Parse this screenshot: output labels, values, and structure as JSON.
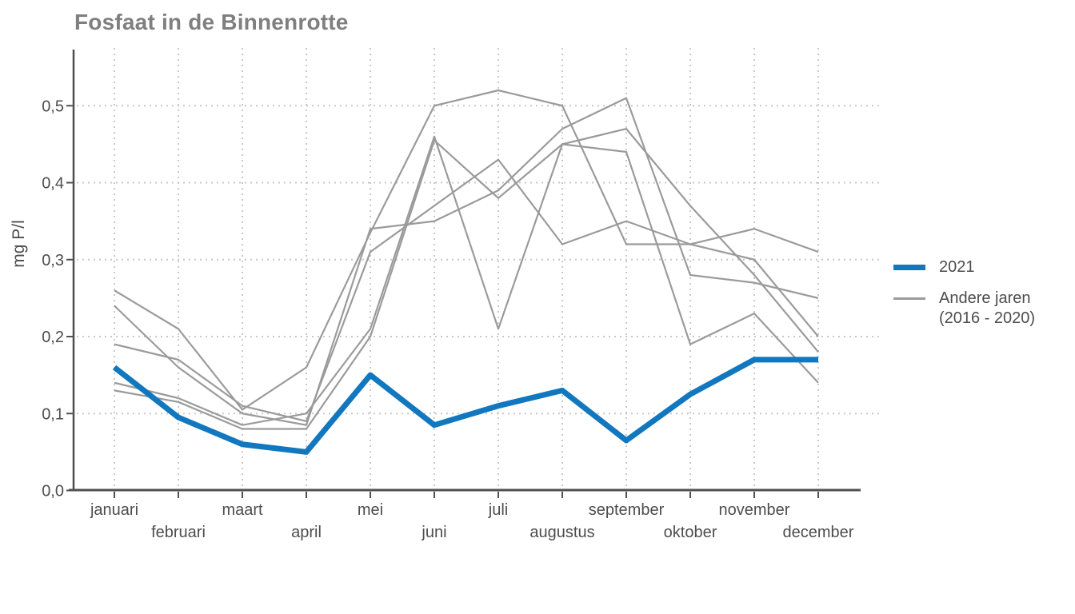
{
  "colors": {
    "accent_blue": "#1177be",
    "gray_line": "#9b9b9b",
    "grid": "#c8c8c8",
    "axis": "#4f4f4f",
    "tick_text": "#4d4d4d",
    "title_text": "#7f7f7f"
  },
  "chart_data": {
    "type": "line",
    "title": "Fosfaat in de Binnenrotte",
    "ylabel": "mg P/l",
    "xlabel": "",
    "x": [
      "januari",
      "februari",
      "maart",
      "april",
      "mei",
      "juni",
      "juli",
      "augustus",
      "september",
      "oktober",
      "november",
      "december"
    ],
    "yticks": [
      0,
      0.1,
      0.2,
      0.3,
      0.4,
      0.5
    ],
    "ytick_labels": [
      "0,0",
      "0,1",
      "0,2",
      "0,3",
      "0,4",
      "0,5"
    ],
    "ylim": [
      0,
      0.57
    ],
    "grid": "dotted",
    "legend_position": "right",
    "legend": [
      {
        "label": "2021",
        "color": "#1177be",
        "line_width": 7
      },
      {
        "label": "Andere jaren",
        "label2": "(2016 - 2020)",
        "color": "#9b9b9b",
        "line_width": 3
      }
    ],
    "series": [
      {
        "name": "2021",
        "color": "#1177be",
        "width": 7,
        "values": [
          0.16,
          0.095,
          0.06,
          0.05,
          0.15,
          0.085,
          0.11,
          0.13,
          0.065,
          0.125,
          0.17,
          0.17
        ]
      },
      {
        "name": "Andere jaren (2016 - 2020)",
        "color": "#9b9b9b",
        "width": 2.2,
        "values": [
          0.26,
          0.21,
          0.105,
          0.16,
          0.335,
          0.5,
          0.52,
          0.5,
          0.32,
          0.32,
          0.34,
          0.31
        ]
      },
      {
        "name": "Andere jaren (2016 - 2020)",
        "color": "#9b9b9b",
        "width": 2.2,
        "values": [
          0.24,
          0.16,
          0.1,
          0.085,
          0.34,
          0.35,
          0.39,
          0.47,
          0.51,
          0.28,
          0.27,
          0.25
        ]
      },
      {
        "name": "Andere jaren (2016 - 2020)",
        "color": "#9b9b9b",
        "width": 2.2,
        "values": [
          0.19,
          0.17,
          0.11,
          0.09,
          0.31,
          0.37,
          0.43,
          0.32,
          0.35,
          0.32,
          0.3,
          0.2
        ]
      },
      {
        "name": "Andere jaren (2016 - 2020)",
        "color": "#9b9b9b",
        "width": 2.2,
        "values": [
          0.14,
          0.12,
          0.085,
          0.1,
          0.21,
          0.46,
          0.21,
          0.45,
          0.47,
          0.37,
          0.28,
          0.18
        ]
      },
      {
        "name": "Andere jaren (2016 - 2020)",
        "color": "#9b9b9b",
        "width": 2.2,
        "values": [
          0.13,
          0.115,
          0.08,
          0.08,
          0.2,
          0.455,
          0.38,
          0.45,
          0.44,
          0.19,
          0.23,
          0.14
        ]
      }
    ]
  }
}
